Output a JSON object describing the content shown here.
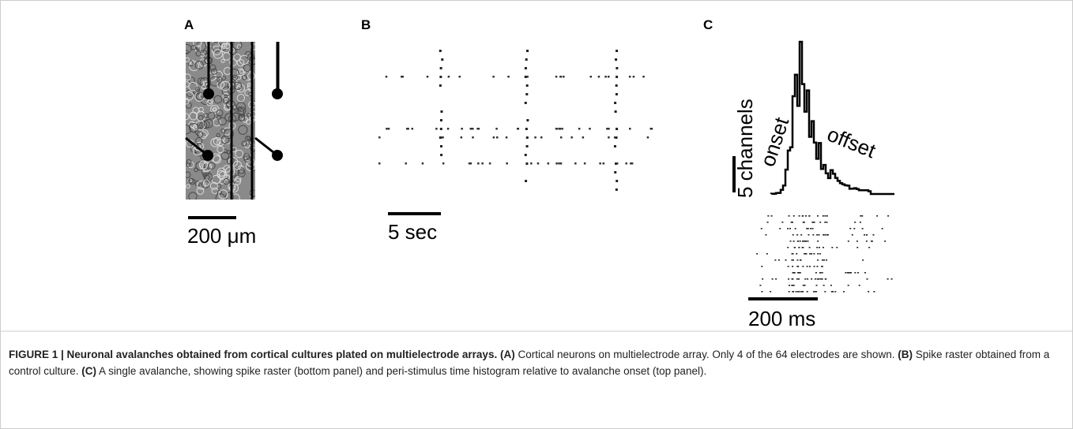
{
  "panels": {
    "a": {
      "label": "A",
      "scale_label": "200 μm"
    },
    "b": {
      "label": "B",
      "scale_label": "5 sec"
    },
    "c": {
      "label": "C",
      "vertical_scale_label": "5 channels",
      "onset_label": "onset",
      "offset_label": "offset",
      "scale_label": "200 ms"
    }
  },
  "caption": {
    "parts": [
      {
        "text": "FIGURE 1 | Neuronal avalanches obtained from cortical cultures plated on multielectrode arrays.",
        "bold": true
      },
      {
        "text": " (A)",
        "bold": true
      },
      {
        "text": " Cortical neurons on multielectrode array. Only 4 of the 64 electrodes are shown.",
        "bold": false
      },
      {
        "text": " (B)",
        "bold": true
      },
      {
        "text": " Spike raster obtained from a control culture.",
        "bold": false
      },
      {
        "text": " (C)",
        "bold": true
      },
      {
        "text": " A single avalanche, showing spike raster (bottom panel) and peri-stimulus time histogram relative to avalanche onset (top panel).",
        "bold": false
      }
    ]
  }
}
